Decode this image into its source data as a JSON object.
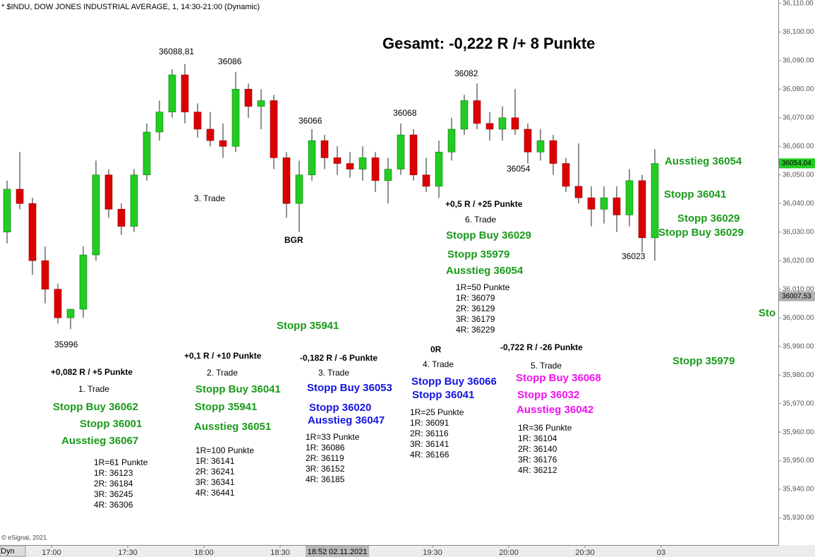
{
  "chart_data": {
    "type": "candlestick",
    "title": "* $INDU, DOW JONES INDUSTRIAL AVERAGE, 1, 14:30-21:00 (Dynamic)",
    "credit": "© eSignal, 2021",
    "button": "Dyn",
    "cursor_label": "18:52 02.11.2021",
    "up_color": "#22cc22",
    "down_color": "#dd0000",
    "open": [
      36030,
      36045,
      36040,
      36020,
      36010,
      36000,
      36003,
      36022,
      36050,
      36038,
      36032,
      36050,
      36065,
      36072,
      36085,
      36072,
      36066,
      36062,
      36060,
      36080,
      36074,
      36076,
      36056,
      36040,
      36050,
      36062,
      36056,
      36054,
      36052,
      36056,
      36048,
      36052,
      36064,
      36050,
      36046,
      36058,
      36066,
      36076,
      36068,
      36066,
      36070,
      36066,
      36058,
      36062,
      36054,
      36046,
      36042,
      36038,
      36042,
      36036,
      36048,
      36028
    ],
    "high": [
      36048,
      36058,
      36042,
      36025,
      36012,
      36003,
      36025,
      36055,
      36052,
      36040,
      36052,
      36068,
      36076,
      36087,
      36088.81,
      36075,
      36072,
      36068,
      36086,
      36082,
      36080,
      36078,
      36058,
      36055,
      36066,
      36064,
      36060,
      36058,
      36060,
      36058,
      36056,
      36068,
      36066,
      36056,
      36062,
      36070,
      36078,
      36082,
      36072,
      36074,
      36080,
      36068,
      36066,
      36064,
      36056,
      36061,
      36046,
      36046,
      36046,
      36052,
      36050,
      36059
    ],
    "low": [
      36026,
      36038,
      36015,
      36005,
      35998,
      35996,
      36000,
      36020,
      36035,
      36029,
      36030,
      36048,
      36062,
      36070,
      36068,
      36063,
      36060,
      36056,
      36058,
      36070,
      36066,
      36052,
      36035,
      36030,
      36048,
      36052,
      36050,
      36049,
      36048,
      36044,
      36040,
      36050,
      36048,
      36044,
      36042,
      36055,
      36064,
      36066,
      36062,
      36062,
      36064,
      36054,
      36055,
      36050,
      36044,
      36040,
      36032,
      36033,
      36030,
      36032,
      36023,
      36020
    ],
    "close": [
      36045,
      36040,
      36020,
      36010,
      36000,
      36003,
      36022,
      36050,
      36038,
      36032,
      36050,
      36065,
      36072,
      36085,
      36072,
      36066,
      36062,
      36060,
      36080,
      36074,
      36076,
      36056,
      36040,
      36050,
      36062,
      36056,
      36054,
      36052,
      36056,
      36048,
      36052,
      36064,
      36050,
      36046,
      36058,
      36066,
      36076,
      36068,
      36066,
      36070,
      36066,
      36058,
      36062,
      36054,
      36046,
      36042,
      36038,
      36042,
      36036,
      36048,
      36028,
      36054
    ],
    "ylim": [
      35921,
      36111.2
    ],
    "yticks": [
      {
        "value": 35930,
        "label": "35,930.00"
      },
      {
        "value": 35940,
        "label": "35,940.00"
      },
      {
        "value": 35950,
        "label": "35,950.00"
      },
      {
        "value": 35960,
        "label": "35,960.00"
      },
      {
        "value": 35970,
        "label": "35,970.00"
      },
      {
        "value": 35980,
        "label": "35,980.00"
      },
      {
        "value": 35990,
        "label": "35,990.00"
      },
      {
        "value": 36000,
        "label": "36,000.00"
      },
      {
        "value": 36010,
        "label": "36,010.00"
      },
      {
        "value": 36020,
        "label": "36,020.00"
      },
      {
        "value": 36030,
        "label": "36,030.00"
      },
      {
        "value": 36040,
        "label": "36,040.00"
      },
      {
        "value": 36050,
        "label": "36,050.00"
      },
      {
        "value": 36060,
        "label": "36,060.00"
      },
      {
        "value": 36070,
        "label": "36,070.00"
      },
      {
        "value": 36080,
        "label": "36,080.00"
      },
      {
        "value": 36090,
        "label": "36,090.00"
      },
      {
        "value": 36100,
        "label": "36,100.00"
      },
      {
        "value": 36110,
        "label": "36,110.00"
      }
    ],
    "xticks": [
      {
        "value": 4,
        "label": "17:00"
      },
      {
        "value": 10,
        "label": "17:30"
      },
      {
        "value": 16,
        "label": "18:00"
      },
      {
        "value": 22,
        "label": "18:30"
      },
      {
        "value": 34,
        "label": "19:30"
      },
      {
        "value": 40,
        "label": "20:00"
      },
      {
        "value": 46,
        "label": "20:30"
      },
      {
        "value": 52,
        "label": "03"
      }
    ],
    "price_markers": [
      {
        "value": 36054.04,
        "label": "36054,04",
        "color": "#22cc22"
      },
      {
        "value": 36007.53,
        "label": "36007,53",
        "color": "#b0b0b0"
      }
    ],
    "annotations": [
      {
        "text": "Gesamt: -0,222 R /+ 8 Punkte"
      },
      {
        "text": "36088,81"
      },
      {
        "text": "36086"
      },
      {
        "text": "36066"
      },
      {
        "text": "36068"
      },
      {
        "text": "36082"
      },
      {
        "text": "36054"
      },
      {
        "text": "36023"
      },
      {
        "text": "35996"
      },
      {
        "text": "3. Trade"
      },
      {
        "text": "BGR"
      },
      {
        "text": "Ausstieg 36054",
        "color": "#1a9a1a"
      },
      {
        "text": "Stopp 36041",
        "color": "#1a9a1a"
      },
      {
        "text": "Stopp 36029",
        "color": "#1a9a1a"
      },
      {
        "text": "Stopp Buy 36029",
        "color": "#1a9a1a"
      },
      {
        "text": "Stopp 35979",
        "color": "#1a9a1a"
      },
      {
        "text": "Sto",
        "color": "#1a9a1a"
      },
      {
        "text": "+0,5 R / +25 Punkte"
      },
      {
        "text": "6. Trade"
      },
      {
        "text": "Stopp Buy 36029",
        "color": "#1a9a1a"
      },
      {
        "text": "Stopp 35979",
        "color": "#1a9a1a"
      },
      {
        "text": "Ausstieg 36054",
        "color": "#1a9a1a"
      },
      {
        "text": "1R=50 Punkte"
      },
      {
        "text": "1R: 36079"
      },
      {
        "text": "2R: 36129"
      },
      {
        "text": "3R: 36179"
      },
      {
        "text": "4R: 36229"
      },
      {
        "text": "Stopp 35941",
        "color": "#1a9a1a"
      },
      {
        "text": "+0,082 R / +5 Punkte"
      },
      {
        "text": "1. Trade"
      },
      {
        "text": "Stopp Buy 36062",
        "color": "#1a9a1a"
      },
      {
        "text": "Stopp 36001",
        "color": "#1a9a1a"
      },
      {
        "text": "Ausstieg 36067",
        "color": "#1a9a1a"
      },
      {
        "text": "1R=61 Punkte"
      },
      {
        "text": "1R: 36123"
      },
      {
        "text": "2R: 36184"
      },
      {
        "text": "3R: 36245"
      },
      {
        "text": "4R: 36306"
      },
      {
        "text": "+0,1 R / +10 Punkte"
      },
      {
        "text": "2. Trade"
      },
      {
        "text": "Stopp Buy 36041",
        "color": "#1a9a1a"
      },
      {
        "text": "Stopp 35941",
        "color": "#1a9a1a"
      },
      {
        "text": "Ausstieg 36051",
        "color": "#1a9a1a"
      },
      {
        "text": "1R=100 Punkte"
      },
      {
        "text": "1R: 36141"
      },
      {
        "text": "2R: 36241"
      },
      {
        "text": "3R: 36341"
      },
      {
        "text": "4R: 36441"
      },
      {
        "text": "-0,182 R / -6 Punkte"
      },
      {
        "text": "3. Trade"
      },
      {
        "text": "Stopp Buy 36053",
        "color": "#1414e0"
      },
      {
        "text": "Stopp 36020",
        "color": "#1414e0"
      },
      {
        "text": "Ausstieg 36047",
        "color": "#1414e0"
      },
      {
        "text": "1R=33 Punkte"
      },
      {
        "text": "1R: 36086"
      },
      {
        "text": "2R: 36119"
      },
      {
        "text": "3R: 36152"
      },
      {
        "text": "4R: 36185"
      },
      {
        "text": "0R"
      },
      {
        "text": "4. Trade"
      },
      {
        "text": "Stopp Buy 36066",
        "color": "#1414e0"
      },
      {
        "text": "Stopp 36041",
        "color": "#1414e0"
      },
      {
        "text": "1R=25 Punkte"
      },
      {
        "text": "1R: 36091"
      },
      {
        "text": "2R: 36116"
      },
      {
        "text": "3R: 36141"
      },
      {
        "text": "4R: 36166"
      },
      {
        "text": "-0,722 R / -26 Punkte"
      },
      {
        "text": "5. Trade"
      },
      {
        "text": "Stopp Buy 36068",
        "color": "#f010f0"
      },
      {
        "text": "Stopp 36032",
        "color": "#f010f0"
      },
      {
        "text": "Ausstieg 36042",
        "color": "#f010f0"
      },
      {
        "text": "1R=36 Punkte"
      },
      {
        "text": "1R: 36104"
      },
      {
        "text": "2R: 36140"
      },
      {
        "text": "3R: 36176"
      },
      {
        "text": "4R: 36212"
      }
    ]
  }
}
